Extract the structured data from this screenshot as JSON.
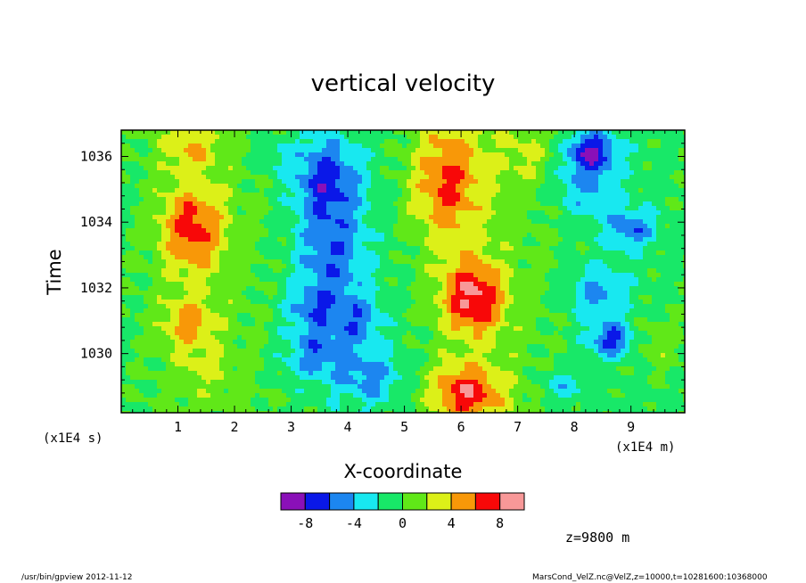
{
  "chart_data": {
    "type": "heatmap",
    "title": "vertical velocity",
    "xlabel": "X-coordinate",
    "ylabel": "Time",
    "x_unit_label": "(x1E4 m)",
    "y_unit_label": "(x1E4 s)",
    "xlim": [
      0,
      9.95
    ],
    "ylim": [
      1028.2,
      1036.8
    ],
    "x_ticks": [
      1,
      2,
      3,
      4,
      5,
      6,
      7,
      8,
      9
    ],
    "y_ticks": [
      1030,
      1032,
      1034,
      1036
    ],
    "colorbar": {
      "levels": [
        -10,
        -8,
        -6,
        -4,
        -2,
        0,
        2,
        4,
        6,
        8,
        10
      ],
      "colors": [
        "#8a10b8",
        "#0a18e8",
        "#1c86f0",
        "#18e8f0",
        "#18e868",
        "#60e818",
        "#dcf018",
        "#f89808",
        "#f80808",
        "#f89898"
      ],
      "labels": [
        "-8",
        "-4",
        "0",
        "4",
        "8"
      ],
      "label_values": [
        -8,
        -4,
        0,
        4,
        8
      ]
    },
    "annotation": "z=9800 m"
  },
  "footer": {
    "left": "/usr/bin/gpview  2012-11-12",
    "right": "MarsCond_VelZ.nc@VelZ,z=10000,t=10281600:10368000"
  }
}
